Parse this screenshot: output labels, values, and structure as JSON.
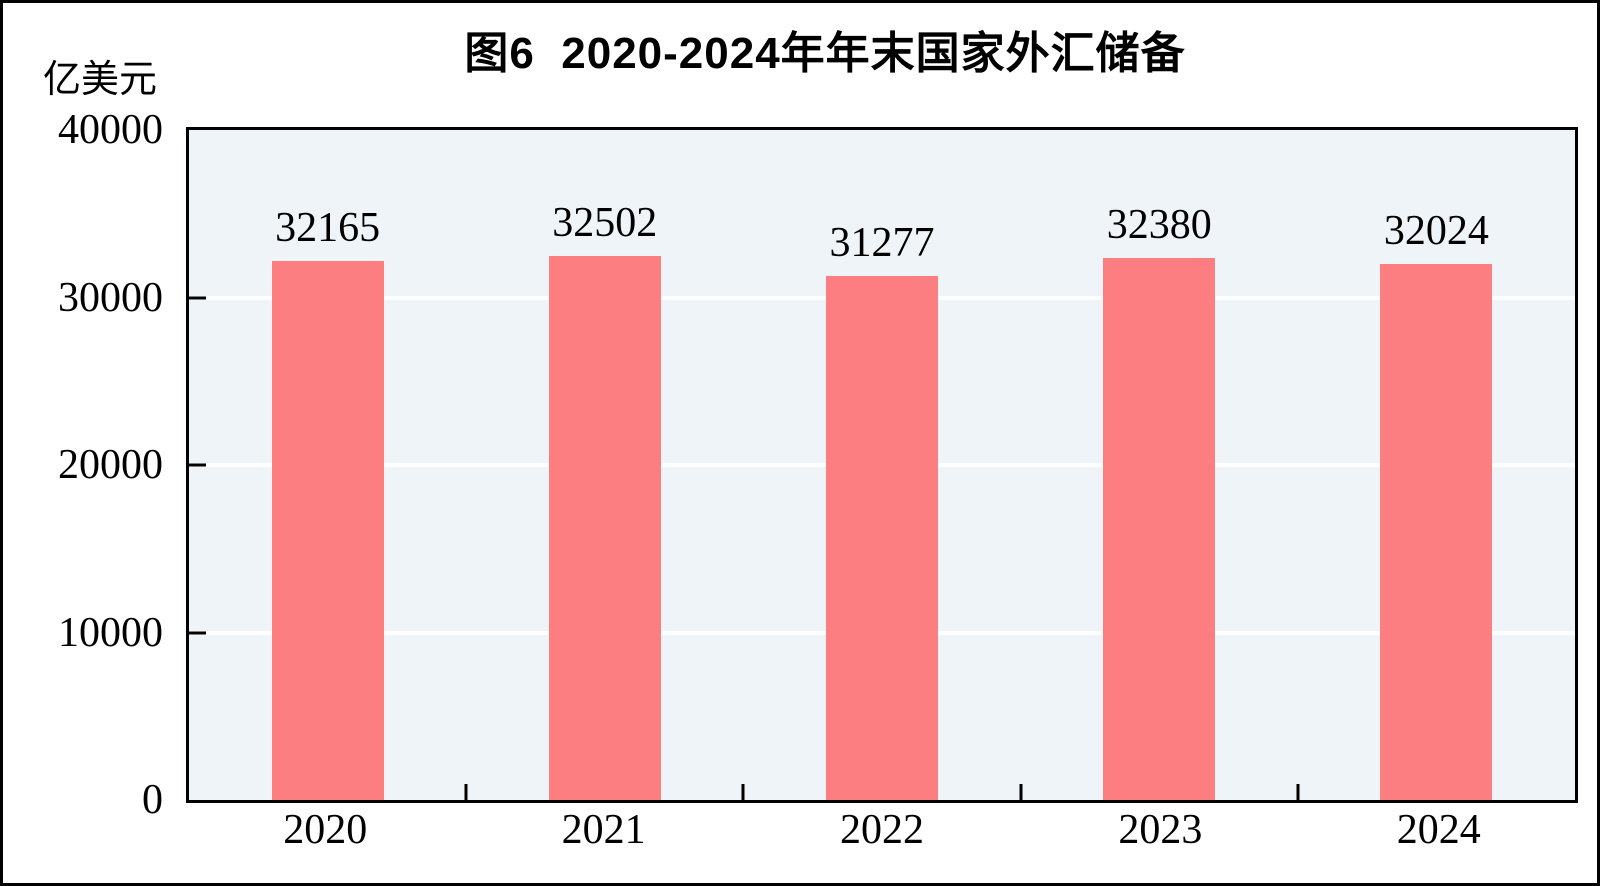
{
  "figure": {
    "title": "图6  2020-2024年年末国家外汇储备",
    "unit_label": "亿美元"
  },
  "chart_data": {
    "type": "bar",
    "title": "图6  2020-2024年年末国家外汇储备",
    "categories": [
      "2020",
      "2021",
      "2022",
      "2023",
      "2024"
    ],
    "values": [
      32165,
      32502,
      31277,
      32380,
      32024
    ],
    "data_labels": [
      32165,
      32502,
      31277,
      32380,
      32024
    ],
    "xlabel": "",
    "ylabel": "亿美元",
    "ylim": [
      0,
      40000
    ],
    "yticks": [
      0,
      10000,
      20000,
      30000,
      40000
    ],
    "grid": "horizontal",
    "gridline_color": "#FFFFFF",
    "legend_position": "none",
    "bar_color": "#FC7E81",
    "plot_bg": "#EEF4F8",
    "axis_color": "#000000",
    "text_color": "#000000"
  }
}
